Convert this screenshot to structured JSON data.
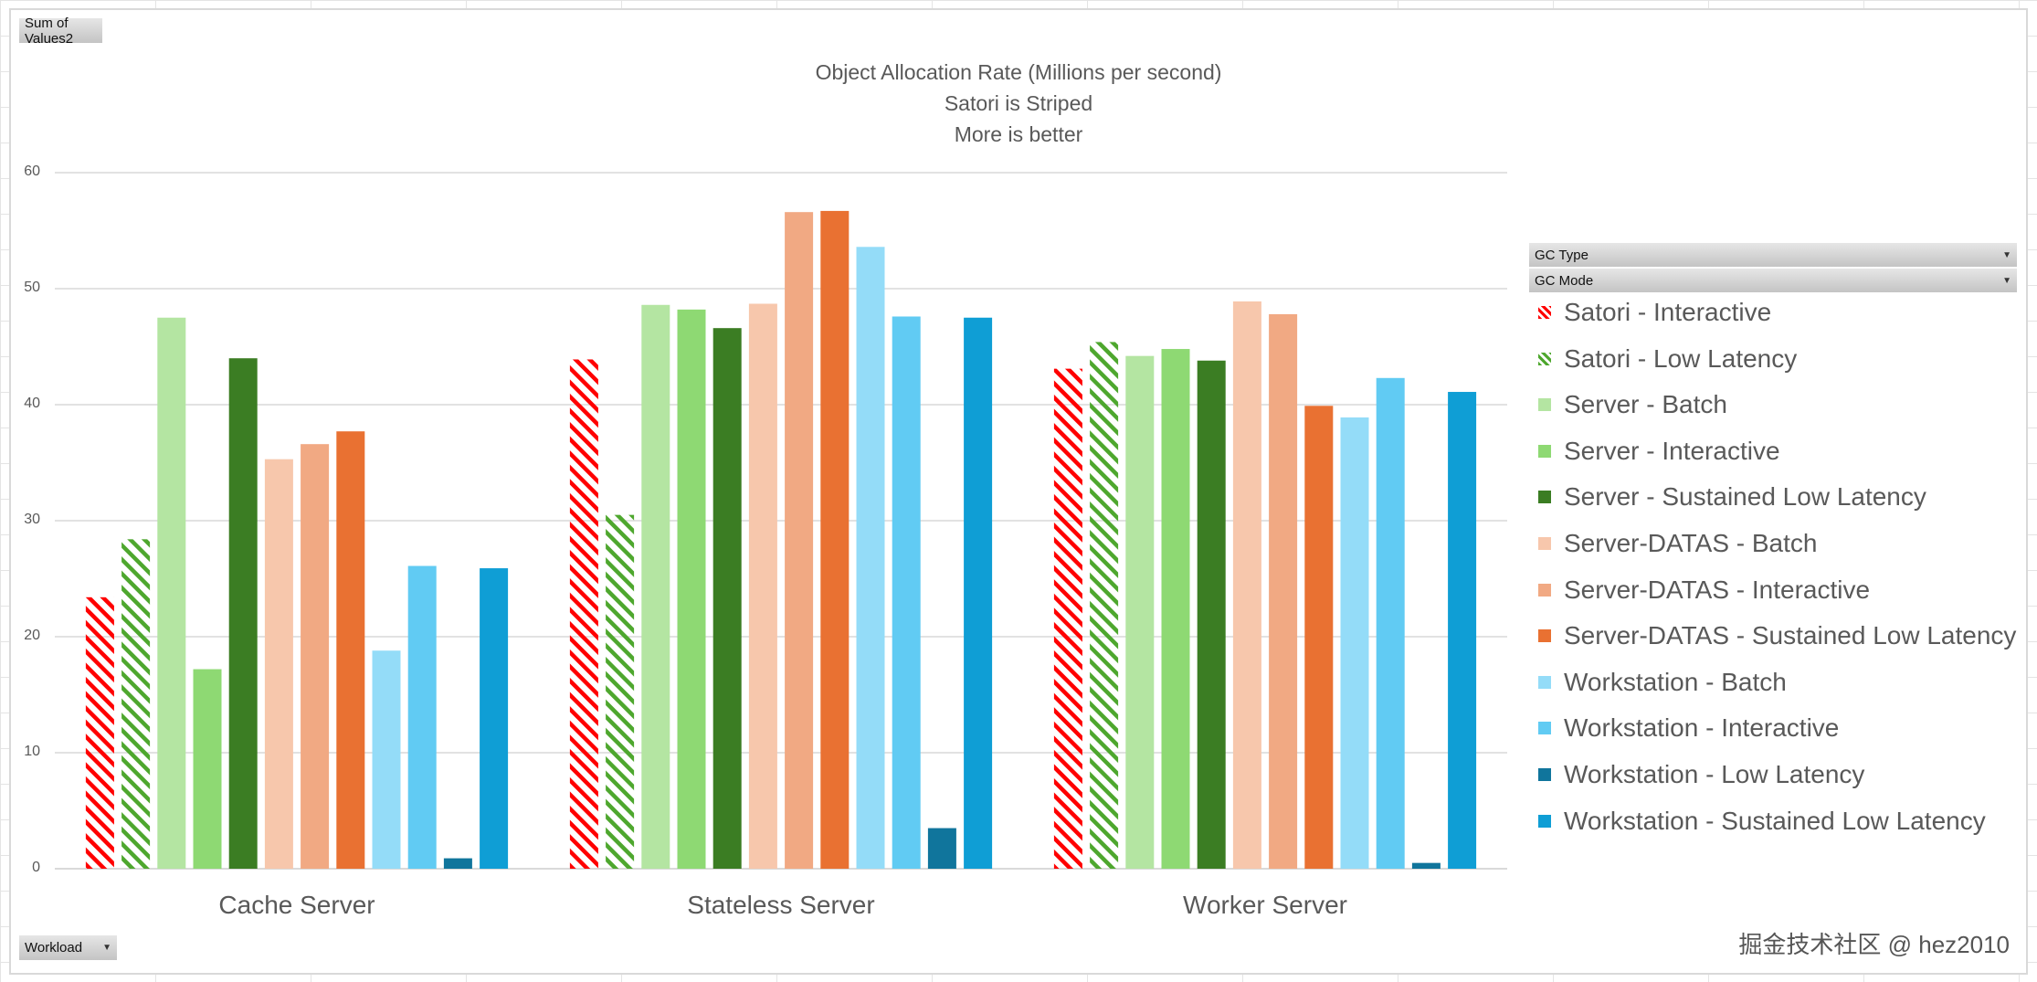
{
  "buttons": {
    "values_field": "Sum of Values2",
    "workload_field": "Workload",
    "gc_type_field": "GC Type",
    "gc_mode_field": "GC Mode"
  },
  "watermark": "掘金技术社区 @ hez2010",
  "chart_data": {
    "type": "bar",
    "title": [
      "Object Allocation Rate (Millions per second)",
      "Satori is Striped",
      "More is better"
    ],
    "xlabel": "",
    "ylabel": "",
    "ylim": [
      0,
      60
    ],
    "yticks": [
      "0",
      "10",
      "20",
      "30",
      "40",
      "50",
      "60"
    ],
    "grid": true,
    "legend_position": "right",
    "categories": [
      "Cache Server",
      "Stateless Server",
      "Worker Server"
    ],
    "series": [
      {
        "name": "Satori - Interactive",
        "color": "#ff0000",
        "striped": true,
        "values": [
          23.4,
          43.9,
          43.1
        ]
      },
      {
        "name": "Satori - Low Latency",
        "color": "#4ea72e",
        "striped": true,
        "values": [
          28.4,
          30.5,
          45.4
        ]
      },
      {
        "name": "Server - Batch",
        "color": "#b4e5a2",
        "values": [
          47.5,
          48.6,
          44.2
        ]
      },
      {
        "name": "Server - Interactive",
        "color": "#8ed973",
        "values": [
          17.2,
          48.2,
          44.8
        ]
      },
      {
        "name": "Server - Sustained Low Latency",
        "color": "#3b7d23",
        "values": [
          44.0,
          46.6,
          43.8
        ]
      },
      {
        "name": "Server-DATAS - Batch",
        "color": "#f7c7ac",
        "values": [
          35.3,
          48.7,
          48.9
        ]
      },
      {
        "name": "Server-DATAS - Interactive",
        "color": "#f1a983",
        "values": [
          36.6,
          56.6,
          47.8
        ]
      },
      {
        "name": "Server-DATAS - Sustained Low Latency",
        "color": "#e97132",
        "values": [
          37.7,
          56.7,
          39.9
        ]
      },
      {
        "name": "Workstation - Batch",
        "color": "#94dcf8",
        "values": [
          18.8,
          53.6,
          38.9
        ]
      },
      {
        "name": "Workstation - Interactive",
        "color": "#61cbf3",
        "values": [
          26.1,
          47.6,
          42.3
        ]
      },
      {
        "name": "Workstation - Low Latency",
        "color": "#10759c",
        "values": [
          0.9,
          3.5,
          0.5
        ]
      },
      {
        "name": "Workstation - Sustained Low Latency",
        "color": "#0f9ed5",
        "values": [
          25.9,
          47.5,
          41.1
        ]
      }
    ]
  }
}
